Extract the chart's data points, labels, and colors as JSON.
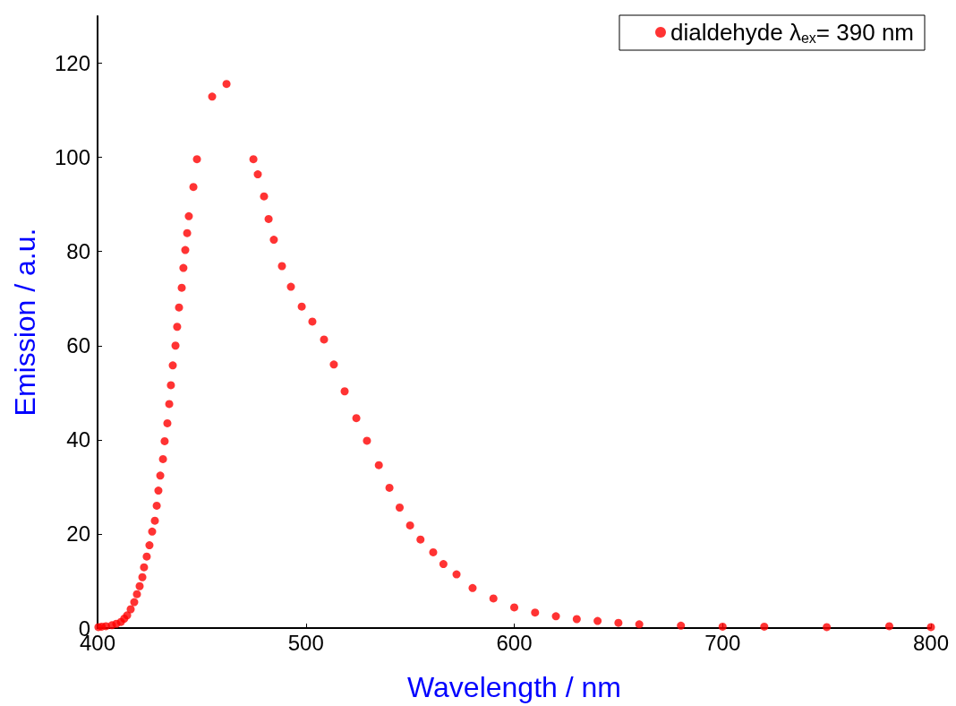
{
  "chart_data": {
    "type": "scatter",
    "xlabel": "Wavelength / nm",
    "ylabel": "Emission / a.u.",
    "xlim": [
      400,
      800
    ],
    "xticks": [
      400,
      500,
      600,
      700,
      800
    ],
    "ylim": [
      0,
      130
    ],
    "yticks": [
      0,
      20,
      40,
      60,
      80,
      100,
      120
    ],
    "grid": false,
    "legend": "top right",
    "marker": "circle",
    "series": [
      {
        "name": "dialdehyde λ$_{ex}$= 390 nm",
        "color": "#ff0000",
        "x": [
          400.4,
          402,
          404,
          406.9,
          409,
          411.2,
          412.8,
          414.2,
          415.9,
          417.6,
          418.9,
          420.2,
          421.5,
          422.3,
          423.6,
          424.9,
          426.2,
          427.5,
          428.4,
          429.2,
          430.1,
          431.4,
          432.2,
          433.5,
          434.4,
          435.2,
          436.1,
          437.4,
          438.2,
          439.1,
          440.4,
          441.2,
          442.1,
          443,
          443.8,
          446,
          447.7,
          455,
          461.9,
          474.8,
          476.9,
          479.9,
          482.1,
          484.6,
          488.5,
          492.8,
          498,
          503.1,
          508.7,
          513.4,
          518.6,
          524.2,
          529.3,
          535,
          540.1,
          545,
          550,
          555,
          561.1,
          566,
          572.3,
          580,
          590,
          600,
          610,
          620,
          630,
          640,
          650,
          660,
          680,
          700,
          720,
          750,
          780,
          800
        ],
        "values": [
          0.2,
          0.3,
          0.4,
          0.6,
          0.9,
          1.3,
          2,
          2.7,
          4,
          5.5,
          7.2,
          8.9,
          10.8,
          12.9,
          15.2,
          17.6,
          20.5,
          22.8,
          26,
          29.2,
          32.4,
          35.9,
          39.7,
          43.5,
          47.6,
          51.6,
          55.8,
          60,
          64,
          68.1,
          72.3,
          76.5,
          80.3,
          83.9,
          87.5,
          93.7,
          99.6,
          112.9,
          115.6,
          99.6,
          96.4,
          91.7,
          86.9,
          82.5,
          76.9,
          72.5,
          68.3,
          65.1,
          61.3,
          56,
          50.3,
          44.6,
          39.8,
          34.6,
          29.8,
          25.6,
          21.8,
          18.8,
          16.1,
          13.6,
          11.4,
          8.5,
          6.3,
          4.4,
          3.3,
          2.5,
          1.9,
          1.5,
          1.1,
          0.8,
          0.5,
          0.3,
          0.3,
          0.2,
          0.4,
          0.2
        ]
      }
    ]
  }
}
